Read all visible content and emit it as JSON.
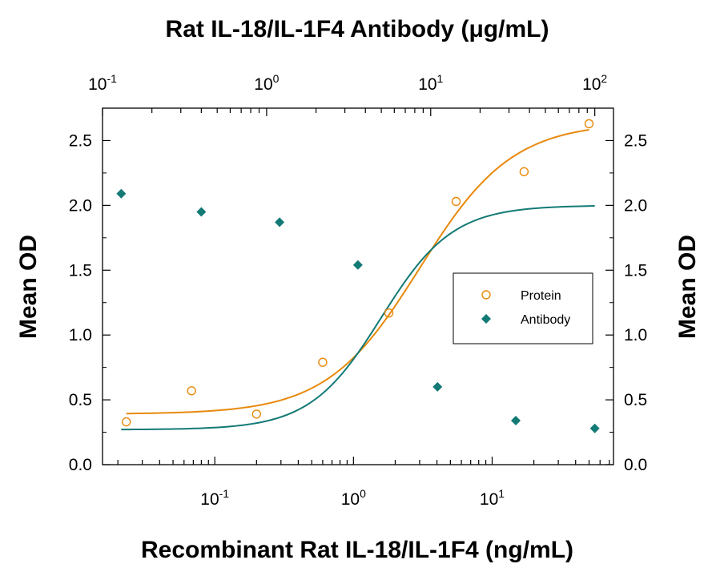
{
  "chart_data": {
    "type": "scatter",
    "title_top": "Rat IL-18/IL-1F4 Antibody (μg/mL)",
    "xlabel": "Recombinant Rat IL-18/IL-1F4 (ng/mL)",
    "ylabel_left": "Mean OD",
    "ylabel_right": "Mean OD",
    "bottom_axis": {
      "scale": "log",
      "range": [
        0.0155,
        75
      ],
      "major_ticks": [
        {
          "value": 0.1,
          "base": "10",
          "exp": "-1"
        },
        {
          "value": 1,
          "base": "10",
          "exp": "0"
        },
        {
          "value": 10,
          "base": "10",
          "exp": "1"
        }
      ]
    },
    "top_axis": {
      "scale": "log",
      "range": [
        0.1,
        130
      ],
      "major_ticks": [
        {
          "value": 0.1,
          "base": "10",
          "exp": "-1"
        },
        {
          "value": 1,
          "base": "10",
          "exp": "0"
        },
        {
          "value": 10,
          "base": "10",
          "exp": "1"
        },
        {
          "value": 100,
          "base": "10",
          "exp": "2"
        }
      ]
    },
    "y_axis": {
      "range": [
        0,
        2.75
      ],
      "ticks": [
        "0.0",
        "0.5",
        "1.0",
        "1.5",
        "2.0",
        "2.5"
      ]
    },
    "legend": {
      "position": "right-middle"
    },
    "series": [
      {
        "name": "Protein",
        "marker": "open-circle",
        "color": "#E8890C",
        "x": [
          0.023,
          0.068,
          0.2,
          0.6,
          1.8,
          5.5,
          17,
          50
        ],
        "y": [
          0.33,
          0.57,
          0.39,
          0.79,
          1.17,
          2.03,
          2.26,
          2.63
        ],
        "fit": {
          "bottom": 0.39,
          "top": 2.64,
          "ec50": 3.0,
          "hill": 1.3
        }
      },
      {
        "name": "Antibody",
        "marker": "filled-diamond",
        "color": "#137A76",
        "axis": "top",
        "x": [
          0.13,
          0.4,
          1.2,
          3.6,
          11,
          33,
          100
        ],
        "y": [
          2.09,
          1.95,
          1.87,
          1.54,
          0.6,
          0.34,
          0.28
        ],
        "fit": {
          "bottom": 0.27,
          "top": 2.0,
          "ec50": 5.0,
          "hill": 2.0
        }
      }
    ]
  }
}
